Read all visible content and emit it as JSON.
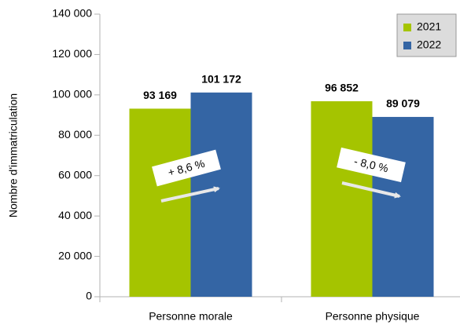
{
  "chart_data": {
    "type": "bar",
    "y_label": "Nombre d'immatriculation",
    "categories": [
      "Personne morale",
      "Personne physique"
    ],
    "series": [
      {
        "name": "2021",
        "color": "#a5c400",
        "values": [
          93169,
          96852
        ],
        "value_labels": [
          "93 169",
          "96 852"
        ]
      },
      {
        "name": "2022",
        "color": "#3465a4",
        "values": [
          101172,
          89079
        ],
        "value_labels": [
          "101 172",
          "89 079"
        ]
      }
    ],
    "ylim": [
      0,
      140000
    ],
    "yticks": [
      {
        "value": 0,
        "label": "0"
      },
      {
        "value": 20000,
        "label": "20 000"
      },
      {
        "value": 40000,
        "label": "40 000"
      },
      {
        "value": 60000,
        "label": "60 000"
      },
      {
        "value": 80000,
        "label": "80 000"
      },
      {
        "value": 100000,
        "label": "100 000"
      },
      {
        "value": 120000,
        "label": "120 000"
      },
      {
        "value": 140000,
        "label": "140 000"
      }
    ],
    "grid": false,
    "legend": "top-right",
    "annotations": [
      "+ 8,6 %",
      "- 8,0 %"
    ]
  }
}
